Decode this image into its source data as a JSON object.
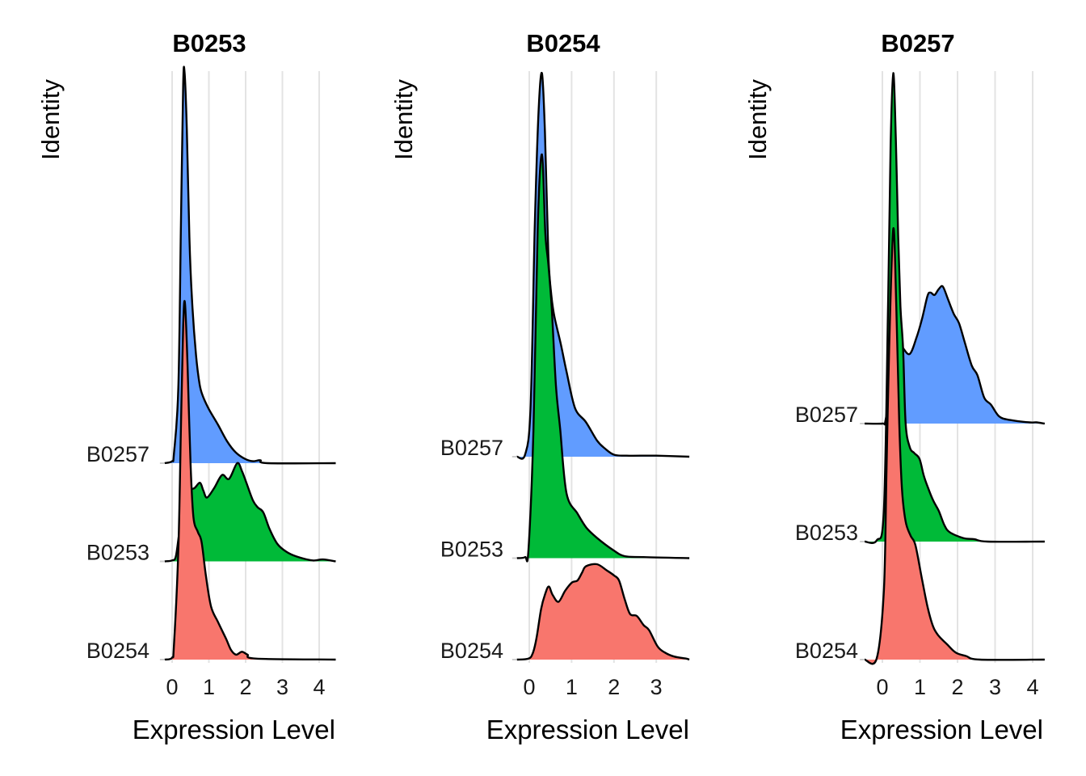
{
  "chart_data": [
    {
      "type": "area",
      "subtype": "ridgeline",
      "title": "B0253",
      "xlabel": "Expression Level",
      "ylabel": "Identity",
      "xlim": [
        -0.2,
        4.45
      ],
      "xticks": [
        0,
        1,
        2,
        3,
        4
      ],
      "grid": true,
      "rows": [
        "B0254",
        "B0253",
        "B0257"
      ],
      "series": [
        {
          "name": "B0257",
          "color": "#619CFF",
          "row": 2,
          "density": [
            [
              -0.2,
              0
            ],
            [
              0,
              0.02
            ],
            [
              0.05,
              0.1
            ],
            [
              0.17,
              0.77
            ],
            [
              0.24,
              2.42
            ],
            [
              0.3,
              3.85
            ],
            [
              0.34,
              3.97
            ],
            [
              0.4,
              3.4
            ],
            [
              0.47,
              2.3
            ],
            [
              0.54,
              1.67
            ],
            [
              0.65,
              1.1
            ],
            [
              0.75,
              0.8
            ],
            [
              0.84,
              0.68
            ],
            [
              1.0,
              0.55
            ],
            [
              1.25,
              0.39
            ],
            [
              1.5,
              0.22
            ],
            [
              1.73,
              0.11
            ],
            [
              2.0,
              0.04
            ],
            [
              2.2,
              0.02
            ],
            [
              2.4,
              0.03
            ],
            [
              2.6,
              0
            ],
            [
              4.45,
              0
            ]
          ]
        },
        {
          "name": "B0253",
          "color": "#00BA38",
          "row": 1,
          "density": [
            [
              -0.2,
              0
            ],
            [
              0,
              0.01
            ],
            [
              0.1,
              0.05
            ],
            [
              0.2,
              0.3
            ],
            [
              0.35,
              0.6
            ],
            [
              0.5,
              0.72
            ],
            [
              0.62,
              0.75
            ],
            [
              0.76,
              0.8
            ],
            [
              0.85,
              0.72
            ],
            [
              0.95,
              0.65
            ],
            [
              1.15,
              0.75
            ],
            [
              1.36,
              0.88
            ],
            [
              1.55,
              0.84
            ],
            [
              1.77,
              1.0
            ],
            [
              1.9,
              0.92
            ],
            [
              2.03,
              0.79
            ],
            [
              2.2,
              0.62
            ],
            [
              2.33,
              0.55
            ],
            [
              2.48,
              0.5
            ],
            [
              2.65,
              0.33
            ],
            [
              2.86,
              0.18
            ],
            [
              3.1,
              0.1
            ],
            [
              3.38,
              0.05
            ],
            [
              3.82,
              0.01
            ],
            [
              4.1,
              0.02
            ],
            [
              4.45,
              0
            ]
          ]
        },
        {
          "name": "B0254",
          "color": "#F8766D",
          "row": 0,
          "density": [
            [
              -0.2,
              0
            ],
            [
              0,
              0.02
            ],
            [
              0.05,
              0.15
            ],
            [
              0.17,
              1.12
            ],
            [
              0.24,
              2.36
            ],
            [
              0.3,
              3.4
            ],
            [
              0.35,
              3.63
            ],
            [
              0.42,
              3.0
            ],
            [
              0.5,
              2.0
            ],
            [
              0.58,
              1.45
            ],
            [
              0.7,
              1.3
            ],
            [
              0.8,
              1.2
            ],
            [
              0.92,
              0.85
            ],
            [
              1.06,
              0.54
            ],
            [
              1.25,
              0.38
            ],
            [
              1.47,
              0.21
            ],
            [
              1.6,
              0.1
            ],
            [
              1.74,
              0.05
            ],
            [
              1.9,
              0.08
            ],
            [
              2.05,
              0.05
            ],
            [
              2.3,
              0.01
            ],
            [
              4.45,
              0
            ]
          ]
        }
      ]
    },
    {
      "type": "area",
      "subtype": "ridgeline",
      "title": "B0254",
      "xlabel": "Expression Level",
      "ylabel": "Identity",
      "xlim": [
        -0.29,
        3.78
      ],
      "xticks": [
        0,
        1,
        2,
        3
      ],
      "grid": true,
      "rows": [
        "B0254",
        "B0253",
        "B0257"
      ],
      "series": [
        {
          "name": "B0257",
          "color": "#619CFF",
          "row": 2,
          "density": [
            [
              -0.29,
              0
            ],
            [
              -0.1,
              0.02
            ],
            [
              0.03,
              0.48
            ],
            [
              0.13,
              2.27
            ],
            [
              0.22,
              3.4
            ],
            [
              0.3,
              3.78
            ],
            [
              0.37,
              3.2
            ],
            [
              0.45,
              2.0
            ],
            [
              0.52,
              1.6
            ],
            [
              0.59,
              1.39
            ],
            [
              0.75,
              1.1
            ],
            [
              0.88,
              0.84
            ],
            [
              1.08,
              0.48
            ],
            [
              1.34,
              0.34
            ],
            [
              1.6,
              0.16
            ],
            [
              1.79,
              0.08
            ],
            [
              2.0,
              0.02
            ],
            [
              2.3,
              0.01
            ],
            [
              3.0,
              0.01
            ],
            [
              3.78,
              0
            ]
          ]
        },
        {
          "name": "B0253",
          "color": "#00BA38",
          "row": 1,
          "density": [
            [
              -0.29,
              0
            ],
            [
              -0.1,
              0.01
            ],
            [
              -0.02,
              0.08
            ],
            [
              0.1,
              1.27
            ],
            [
              0.2,
              3.27
            ],
            [
              0.3,
              3.98
            ],
            [
              0.38,
              3.2
            ],
            [
              0.45,
              2.9
            ],
            [
              0.53,
              2.47
            ],
            [
              0.63,
              1.7
            ],
            [
              0.73,
              1.27
            ],
            [
              0.88,
              0.64
            ],
            [
              1.14,
              0.44
            ],
            [
              1.35,
              0.3
            ],
            [
              1.6,
              0.2
            ],
            [
              1.98,
              0.08
            ],
            [
              2.25,
              0.02
            ],
            [
              2.7,
              0.01
            ],
            [
              3.78,
              0
            ]
          ]
        },
        {
          "name": "B0254",
          "color": "#F8766D",
          "row": 0,
          "density": [
            [
              -0.29,
              0
            ],
            [
              -0.02,
              0.01
            ],
            [
              0.08,
              0.06
            ],
            [
              0.17,
              0.21
            ],
            [
              0.28,
              0.5
            ],
            [
              0.37,
              0.64
            ],
            [
              0.46,
              0.72
            ],
            [
              0.55,
              0.64
            ],
            [
              0.69,
              0.57
            ],
            [
              0.85,
              0.68
            ],
            [
              1.01,
              0.76
            ],
            [
              1.14,
              0.78
            ],
            [
              1.25,
              0.86
            ],
            [
              1.34,
              0.92
            ],
            [
              1.6,
              0.94
            ],
            [
              1.83,
              0.88
            ],
            [
              2.0,
              0.83
            ],
            [
              2.12,
              0.78
            ],
            [
              2.25,
              0.6
            ],
            [
              2.38,
              0.45
            ],
            [
              2.54,
              0.43
            ],
            [
              2.7,
              0.34
            ],
            [
              2.83,
              0.29
            ],
            [
              3.03,
              0.13
            ],
            [
              3.2,
              0.07
            ],
            [
              3.42,
              0.03
            ],
            [
              3.7,
              0.01
            ],
            [
              3.78,
              0
            ]
          ]
        }
      ]
    },
    {
      "type": "area",
      "subtype": "ridgeline",
      "title": "B0257",
      "xlabel": "Expression Level",
      "ylabel": "Identity",
      "xlim": [
        -0.47,
        4.32
      ],
      "xticks": [
        0,
        1,
        2,
        3,
        4
      ],
      "grid": true,
      "rows": [
        "B0254",
        "B0253",
        "B0257"
      ],
      "series": [
        {
          "name": "B0257",
          "color": "#619CFF",
          "row": 2,
          "density": [
            [
              -0.47,
              0
            ],
            [
              0,
              0
            ],
            [
              0.08,
              0.02
            ],
            [
              0.2,
              0.3
            ],
            [
              0.35,
              0.65
            ],
            [
              0.45,
              0.7
            ],
            [
              0.55,
              0.64
            ],
            [
              0.73,
              0.59
            ],
            [
              0.9,
              0.72
            ],
            [
              1.05,
              0.88
            ],
            [
              1.2,
              1.08
            ],
            [
              1.28,
              1.11
            ],
            [
              1.39,
              1.09
            ],
            [
              1.5,
              1.14
            ],
            [
              1.61,
              1.16
            ],
            [
              1.75,
              1.05
            ],
            [
              1.9,
              0.93
            ],
            [
              2.04,
              0.85
            ],
            [
              2.2,
              0.68
            ],
            [
              2.38,
              0.49
            ],
            [
              2.53,
              0.41
            ],
            [
              2.71,
              0.22
            ],
            [
              2.89,
              0.16
            ],
            [
              3.11,
              0.06
            ],
            [
              3.4,
              0.03
            ],
            [
              3.91,
              0.01
            ],
            [
              4.1,
              0.01
            ],
            [
              4.32,
              0
            ]
          ]
        },
        {
          "name": "B0253",
          "color": "#00BA38",
          "row": 1,
          "density": [
            [
              -0.47,
              0
            ],
            [
              -0.15,
              0.01
            ],
            [
              0.04,
              0.27
            ],
            [
              0.15,
              1.99
            ],
            [
              0.22,
              3.36
            ],
            [
              0.29,
              3.97
            ],
            [
              0.36,
              3.4
            ],
            [
              0.42,
              2.6
            ],
            [
              0.48,
              2.0
            ],
            [
              0.55,
              1.64
            ],
            [
              0.62,
              1.0
            ],
            [
              0.73,
              0.8
            ],
            [
              0.85,
              0.75
            ],
            [
              0.99,
              0.7
            ],
            [
              1.1,
              0.56
            ],
            [
              1.21,
              0.46
            ],
            [
              1.35,
              0.35
            ],
            [
              1.5,
              0.26
            ],
            [
              1.65,
              0.14
            ],
            [
              1.79,
              0.08
            ],
            [
              2.15,
              0.03
            ],
            [
              2.45,
              0.02
            ],
            [
              2.8,
              0
            ],
            [
              4.32,
              0
            ]
          ]
        },
        {
          "name": "B0254",
          "color": "#F8766D",
          "row": 0,
          "density": [
            [
              -0.47,
              0
            ],
            [
              -0.15,
              0.01
            ],
            [
              0.04,
              0.59
            ],
            [
              0.11,
              1.6
            ],
            [
              0.18,
              2.64
            ],
            [
              0.29,
              3.65
            ],
            [
              0.37,
              3.0
            ],
            [
              0.45,
              2.0
            ],
            [
              0.52,
              1.45
            ],
            [
              0.62,
              1.17
            ],
            [
              0.75,
              1.05
            ],
            [
              0.88,
              0.97
            ],
            [
              1.05,
              0.69
            ],
            [
              1.2,
              0.45
            ],
            [
              1.35,
              0.28
            ],
            [
              1.5,
              0.2
            ],
            [
              1.72,
              0.13
            ],
            [
              1.95,
              0.06
            ],
            [
              2.23,
              0.03
            ],
            [
              2.6,
              0
            ],
            [
              4.32,
              0
            ]
          ]
        }
      ]
    }
  ]
}
